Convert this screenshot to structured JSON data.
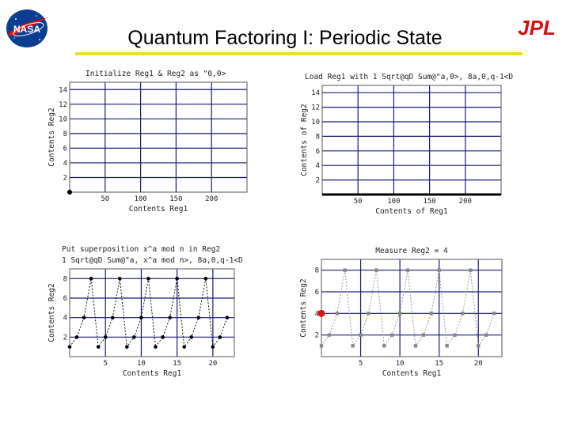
{
  "slide": {
    "title": "Quantum Factoring I: Periodic State",
    "logos": {
      "left": "NASA",
      "right": "JPL"
    },
    "colors": {
      "underline": "#e8df2a",
      "grid": "#1a1a7a",
      "jpl": "#d41010",
      "nasa_blue": "#0b3d91",
      "highlight": "#e01010"
    }
  },
  "chart_data": [
    {
      "type": "scatter",
      "title": "Initialize Reg1 & Reg2 as \"0,0>",
      "xlabel": "Contents Reg1",
      "ylabel": "Contents Reg2",
      "xticks": [
        "50",
        "100",
        "150",
        "200"
      ],
      "yticks": [
        "2",
        "4",
        "6",
        "8",
        "10",
        "12",
        "14"
      ],
      "xlim": [
        0,
        250
      ],
      "ylim": [
        0,
        15
      ],
      "grid": true,
      "points": [
        {
          "x": 0,
          "y": 0
        }
      ]
    },
    {
      "type": "line",
      "title": "Load Reg1 with 1 Sqrt@qD Sum@\"a,0>, 8a,0,q-1<D",
      "xlabel": "Contents of Reg1",
      "ylabel": "Contents of Reg2",
      "xticks": [
        "50",
        "100",
        "150",
        "200"
      ],
      "yticks": [
        "2",
        "4",
        "6",
        "8",
        "10",
        "12",
        "14"
      ],
      "xlim": [
        0,
        250
      ],
      "ylim": [
        0,
        15
      ],
      "grid": true,
      "x_range": [
        0,
        255
      ],
      "y": 0
    },
    {
      "type": "line",
      "title": "Put superposition x^a mod n in Reg2",
      "subtitle": "1 Sqrt@qD Sum@\"a, x^a mod n>, 8a,0,q-1<D",
      "xlabel": "Contents Reg1",
      "ylabel": "Contents Reg2",
      "xticks": [
        "5",
        "10",
        "15",
        "20"
      ],
      "yticks": [
        "2",
        "4",
        "6",
        "8"
      ],
      "xlim": [
        0,
        23
      ],
      "ylim": [
        0,
        9
      ],
      "grid": true,
      "x": [
        0,
        1,
        2,
        3,
        4,
        5,
        6,
        7,
        8,
        9,
        10,
        11,
        12,
        13,
        14,
        15,
        16,
        17,
        18,
        19,
        20,
        21,
        22
      ],
      "y": [
        1,
        2,
        4,
        8,
        1,
        2,
        4,
        8,
        1,
        2,
        4,
        8,
        1,
        2,
        4,
        8,
        1,
        2,
        4,
        8,
        1,
        2,
        4
      ]
    },
    {
      "type": "line",
      "title": "Measure Reg2 = 4",
      "xlabel": "Contents Reg1",
      "ylabel": "Contents Reg2",
      "xticks": [
        "5",
        "10",
        "15",
        "20"
      ],
      "yticks": [
        "2",
        "4",
        "6",
        "8"
      ],
      "xlim": [
        0,
        23
      ],
      "ylim": [
        0,
        9
      ],
      "grid": true,
      "x": [
        0,
        1,
        2,
        3,
        4,
        5,
        6,
        7,
        8,
        9,
        10,
        11,
        12,
        13,
        14,
        15,
        16,
        17,
        18,
        19,
        20,
        21,
        22
      ],
      "y": [
        1,
        2,
        4,
        8,
        1,
        2,
        4,
        8,
        1,
        2,
        4,
        8,
        1,
        2,
        4,
        8,
        1,
        2,
        4,
        8,
        1,
        2,
        4
      ],
      "highlight_y": 4
    }
  ]
}
